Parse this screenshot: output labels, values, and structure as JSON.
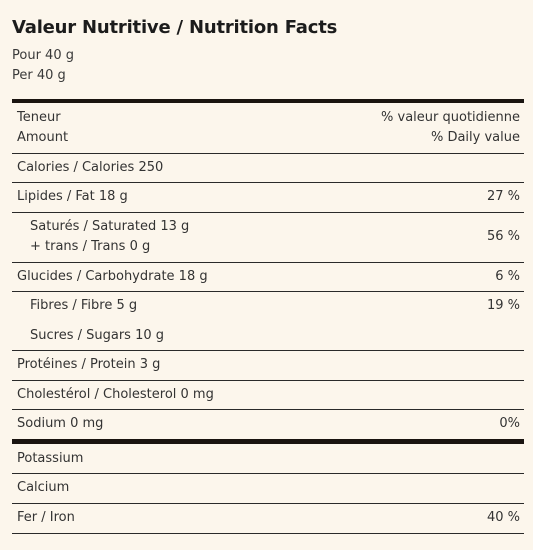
{
  "title": "Valeur Nutritive / Nutrition Facts",
  "serving_fr": "Pour 40 g",
  "serving_en": "Per 40 g",
  "header": {
    "amount_fr": "Teneur",
    "amount_en": "Amount",
    "dv_fr": "% valeur quotidienne",
    "dv_en": "% Daily value"
  },
  "calories": "Calories / Calories 250",
  "fat": {
    "label": "Lipides / Fat 18 g",
    "dv": "27 %"
  },
  "saturated": {
    "label1": "Saturés / Saturated 13 g",
    "label2": "+ trans / Trans 0 g",
    "dv": "56 %"
  },
  "carbohydrate": {
    "label": "Glucides / Carbohydrate 18 g",
    "dv": "6 %"
  },
  "fibre": {
    "label": "Fibres / Fibre 5 g",
    "dv": "19 %"
  },
  "sugars": {
    "label": "Sucres / Sugars 10 g"
  },
  "protein": {
    "label": "Protéines / Protein 3 g"
  },
  "cholesterol": {
    "label": "Cholestérol / Cholesterol 0 mg"
  },
  "sodium": {
    "label": "Sodium 0 mg",
    "dv": "0%"
  },
  "potassium": {
    "label": "Potassium"
  },
  "calcium": {
    "label": "Calcium"
  },
  "iron": {
    "label": "Fer / Iron",
    "dv": "40 %"
  }
}
